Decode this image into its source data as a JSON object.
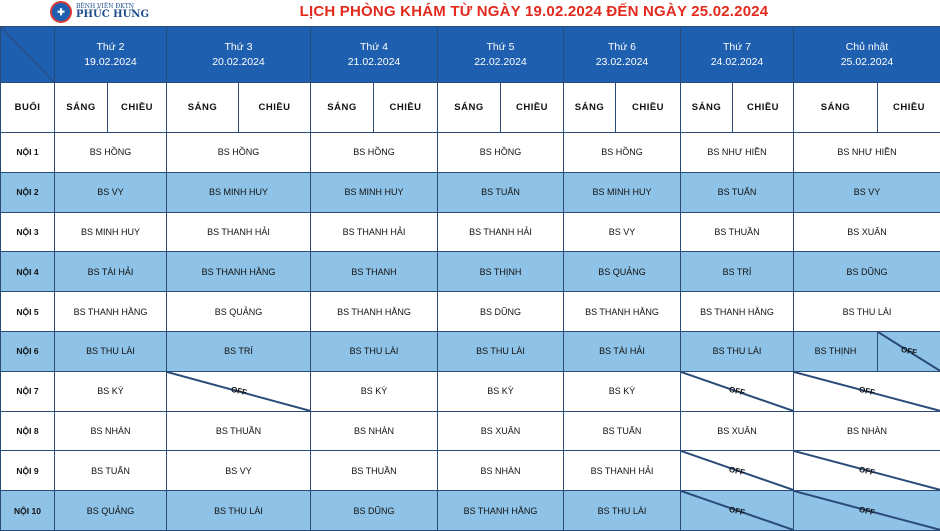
{
  "logo": {
    "line1": "BỆNH VIỆN ĐKTN",
    "line2": "PHÚC HƯNG"
  },
  "title": "LỊCH PHÒNG KHÁM TỪ NGÀY 19.02.2024 ĐẾN NGÀY 25.02.2024",
  "days": [
    {
      "name": "Thứ 2",
      "date": "19.02.2024"
    },
    {
      "name": "Thứ 3",
      "date": "20.02.2024"
    },
    {
      "name": "Thứ 4",
      "date": "21.02.2024"
    },
    {
      "name": "Thứ 5",
      "date": "22.02.2024"
    },
    {
      "name": "Thứ 6",
      "date": "23.02.2024"
    },
    {
      "name": "Thứ 7",
      "date": "24.02.2024"
    },
    {
      "name": "Chủ nhật",
      "date": "25.02.2024"
    }
  ],
  "shift_header": {
    "label": "BUỔI",
    "morning": "SÁNG",
    "afternoon": "CHIỀU"
  },
  "off_label": "OFF",
  "rows": [
    {
      "room": "NỘI 1",
      "cells": [
        "BS HỒNG",
        "BS HỒNG",
        "BS HỒNG",
        "BS HỒNG",
        "BS HỒNG",
        "BS NHƯ HIỀN",
        "BS NHƯ HIỀN"
      ]
    },
    {
      "room": "NỘI 2",
      "cells": [
        "BS VY",
        "BS MINH HUY",
        "BS MINH HUY",
        "BS TUẤN",
        "BS MINH HUY",
        "BS TUẤN",
        "BS VY"
      ]
    },
    {
      "room": "NỘI 3",
      "cells": [
        "BS MINH HUY",
        "BS THANH HẢI",
        "BS THANH HẢI",
        "BS THANH HẢI",
        "BS VY",
        "BS THUẦN",
        "BS XUÂN"
      ]
    },
    {
      "room": "NỘI 4",
      "cells": [
        "BS TÀI HẢI",
        "BS THANH HẰNG",
        "BS THANH",
        "BS THỊNH",
        "BS QUẢNG",
        "BS TRÍ",
        "BS DŨNG"
      ]
    },
    {
      "room": "NỘI 5",
      "cells": [
        "BS THANH HẰNG",
        "BS QUẢNG",
        "BS THANH HẰNG",
        "BS DŨNG",
        "BS THANH HẰNG",
        "BS THANH HẰNG",
        "BS THU LÀI"
      ]
    },
    {
      "room": "NỘI 6",
      "cells": [
        "BS THU LÀI",
        "BS TRÍ",
        "BS THU LÀI",
        "BS THU LÀI",
        "BS TÀI HẢI",
        "BS THU LÀI",
        "BS THỊNH"
      ]
    },
    {
      "room": "NỘI 7",
      "cells": [
        "BS KỲ",
        "OFF",
        "BS KỲ",
        "BS KỲ",
        "BS KỲ",
        "OFF",
        "OFF"
      ]
    },
    {
      "room": "NỘI 8",
      "cells": [
        "BS NHÀN",
        "BS THUẦN",
        "BS NHÀN",
        "BS XUÂN",
        "BS TUẤN",
        "BS XUÂN",
        "BS NHÀN"
      ]
    },
    {
      "room": "NỘI 9",
      "cells": [
        "BS TUẤN",
        "BS VY",
        "BS THUẦN",
        "BS NHÀN",
        "BS THANH HẢI",
        "OFF",
        "OFF"
      ]
    },
    {
      "room": "NỘI 10",
      "cells": [
        "BS QUẢNG",
        "BS THU LÀI",
        "BS DŨNG",
        "BS THANH HẰNG",
        "BS THU LÀI",
        "OFF",
        "OFF"
      ]
    }
  ],
  "colors": {
    "header_blue": "#1f5fb0",
    "row_blue": "#8ec2e6",
    "title_red": "#e32a1e",
    "border": "#2a4a78"
  }
}
